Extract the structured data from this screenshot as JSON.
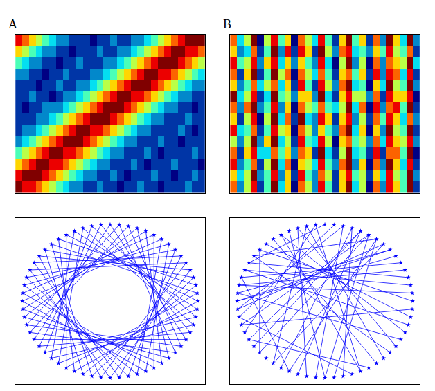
{
  "chart_data": [
    {
      "panel": "A",
      "type": "heatmap",
      "color": "Jet",
      "tick_labels": false,
      "z": [
        [
          9,
          8,
          8,
          7,
          6,
          5,
          4,
          3,
          2,
          2,
          1,
          1,
          2,
          1,
          1,
          0,
          1,
          1,
          2,
          1,
          1,
          0,
          1,
          1,
          1,
          2,
          1,
          1
        ],
        [
          8,
          9,
          9,
          9,
          8,
          7,
          6,
          5,
          4,
          3,
          2,
          2,
          1,
          1,
          2,
          1,
          0,
          1,
          1,
          1,
          2,
          1,
          1,
          0,
          1,
          1,
          2,
          1
        ],
        [
          6,
          7,
          8,
          9,
          9,
          8,
          8,
          7,
          6,
          5,
          4,
          3,
          2,
          2,
          1,
          1,
          1,
          2,
          1,
          0,
          1,
          1,
          1,
          2,
          1,
          1,
          1,
          0
        ],
        [
          4,
          5,
          6,
          7,
          8,
          9,
          9,
          8,
          8,
          7,
          6,
          5,
          4,
          3,
          2,
          2,
          1,
          1,
          1,
          2,
          1,
          0,
          1,
          1,
          1,
          1,
          2,
          1
        ],
        [
          2,
          3,
          4,
          5,
          6,
          7,
          8,
          9,
          9,
          9,
          8,
          7,
          6,
          5,
          4,
          3,
          2,
          2,
          1,
          1,
          1,
          2,
          1,
          1,
          0,
          1,
          1,
          1
        ],
        [
          1,
          2,
          2,
          3,
          4,
          5,
          6,
          7,
          8,
          9,
          9,
          8,
          8,
          7,
          6,
          5,
          4,
          3,
          2,
          2,
          1,
          1,
          1,
          1,
          2,
          1,
          0,
          1
        ],
        [
          1,
          1,
          1,
          2,
          2,
          3,
          4,
          5,
          6,
          7,
          8,
          9,
          9,
          9,
          8,
          7,
          6,
          5,
          4,
          3,
          2,
          2,
          1,
          1,
          1,
          2,
          1,
          1
        ],
        [
          1,
          0,
          1,
          1,
          2,
          2,
          2,
          3,
          4,
          5,
          6,
          7,
          8,
          9,
          9,
          9,
          8,
          7,
          6,
          5,
          4,
          3,
          2,
          2,
          1,
          1,
          0,
          1
        ],
        [
          1,
          1,
          2,
          1,
          1,
          0,
          1,
          2,
          2,
          3,
          4,
          5,
          6,
          7,
          8,
          9,
          9,
          8,
          8,
          7,
          6,
          5,
          4,
          3,
          2,
          2,
          1,
          1
        ],
        [
          1,
          1,
          1,
          0,
          1,
          1,
          2,
          1,
          1,
          2,
          2,
          3,
          4,
          5,
          6,
          7,
          8,
          9,
          9,
          9,
          8,
          7,
          6,
          5,
          4,
          3,
          2,
          2
        ],
        [
          2,
          2,
          1,
          1,
          0,
          1,
          1,
          2,
          1,
          1,
          1,
          2,
          2,
          3,
          4,
          5,
          6,
          7,
          8,
          9,
          9,
          8,
          8,
          7,
          6,
          5,
          4,
          3
        ],
        [
          4,
          3,
          2,
          2,
          1,
          1,
          0,
          1,
          1,
          2,
          1,
          1,
          1,
          2,
          2,
          3,
          4,
          5,
          6,
          7,
          8,
          9,
          9,
          9,
          8,
          7,
          6,
          5
        ],
        [
          6,
          5,
          4,
          3,
          2,
          2,
          1,
          1,
          0,
          1,
          1,
          1,
          2,
          1,
          1,
          2,
          2,
          3,
          4,
          5,
          6,
          7,
          8,
          9,
          9,
          8,
          8,
          7
        ],
        [
          8,
          7,
          6,
          5,
          4,
          3,
          2,
          2,
          1,
          1,
          1,
          0,
          1,
          1,
          2,
          1,
          1,
          2,
          2,
          3,
          4,
          5,
          6,
          7,
          8,
          9,
          9,
          9
        ]
      ]
    },
    {
      "panel": "B",
      "type": "heatmap",
      "color": "Jet",
      "tick_labels": false,
      "z": [
        [
          7,
          2,
          5,
          8,
          1,
          4,
          9,
          3,
          6,
          0,
          7,
          5,
          2,
          8,
          4,
          1,
          6,
          9,
          3,
          5,
          0,
          7,
          2,
          8,
          6,
          4,
          9,
          1
        ],
        [
          6,
          3,
          5,
          9,
          2,
          4,
          8,
          2,
          6,
          1,
          8,
          4,
          2,
          7,
          5,
          1,
          6,
          8,
          4,
          5,
          1,
          6,
          3,
          8,
          5,
          4,
          9,
          2
        ],
        [
          8,
          2,
          4,
          7,
          1,
          5,
          9,
          3,
          7,
          0,
          6,
          5,
          3,
          8,
          4,
          2,
          7,
          9,
          2,
          6,
          0,
          7,
          2,
          9,
          6,
          3,
          8,
          1
        ],
        [
          7,
          1,
          6,
          8,
          3,
          3,
          7,
          4,
          6,
          2,
          7,
          6,
          1,
          9,
          3,
          1,
          5,
          9,
          3,
          4,
          1,
          8,
          1,
          7,
          7,
          4,
          9,
          0
        ],
        [
          5,
          2,
          5,
          9,
          2,
          6,
          9,
          3,
          5,
          1,
          8,
          4,
          3,
          8,
          5,
          0,
          6,
          7,
          4,
          5,
          2,
          7,
          3,
          8,
          6,
          5,
          8,
          2
        ],
        [
          8,
          3,
          4,
          7,
          1,
          4,
          8,
          5,
          6,
          0,
          7,
          5,
          2,
          6,
          4,
          2,
          7,
          9,
          3,
          6,
          0,
          6,
          2,
          9,
          5,
          4,
          9,
          1
        ],
        [
          6,
          1,
          5,
          8,
          0,
          5,
          9,
          3,
          7,
          1,
          9,
          3,
          2,
          8,
          6,
          1,
          6,
          8,
          2,
          5,
          1,
          7,
          4,
          8,
          6,
          3,
          7,
          2
        ],
        [
          7,
          2,
          7,
          9,
          2,
          4,
          8,
          2,
          6,
          0,
          7,
          5,
          4,
          7,
          4,
          3,
          5,
          9,
          3,
          7,
          0,
          8,
          2,
          7,
          8,
          4,
          9,
          1
        ],
        [
          9,
          3,
          5,
          8,
          1,
          3,
          9,
          4,
          5,
          2,
          6,
          6,
          2,
          9,
          3,
          1,
          6,
          8,
          5,
          5,
          2,
          7,
          1,
          8,
          6,
          6,
          8,
          0
        ],
        [
          6,
          2,
          4,
          7,
          3,
          5,
          7,
          3,
          6,
          1,
          8,
          4,
          1,
          8,
          5,
          2,
          7,
          9,
          3,
          4,
          0,
          6,
          3,
          9,
          5,
          4,
          9,
          2
        ],
        [
          7,
          1,
          6,
          9,
          1,
          4,
          9,
          5,
          7,
          0,
          7,
          5,
          3,
          7,
          4,
          1,
          6,
          7,
          4,
          6,
          1,
          8,
          2,
          8,
          7,
          3,
          8,
          1
        ],
        [
          8,
          4,
          5,
          8,
          2,
          6,
          8,
          3,
          6,
          2,
          6,
          4,
          2,
          8,
          3,
          0,
          5,
          9,
          2,
          5,
          0,
          7,
          2,
          7,
          6,
          5,
          9,
          3
        ],
        [
          6,
          2,
          3,
          7,
          1,
          4,
          9,
          2,
          8,
          1,
          8,
          6,
          1,
          9,
          5,
          2,
          7,
          8,
          3,
          4,
          2,
          6,
          4,
          8,
          5,
          4,
          7,
          1
        ],
        [
          7,
          3,
          5,
          9,
          0,
          5,
          8,
          4,
          6,
          0,
          7,
          5,
          3,
          8,
          4,
          1,
          6,
          9,
          4,
          6,
          1,
          7,
          2,
          9,
          6,
          3,
          9,
          2
        ]
      ]
    },
    {
      "panel": "A",
      "type": "network",
      "color": "#0000ff",
      "marker": "star",
      "tick_labels": false,
      "nodes": 60,
      "edges": [
        [
          0,
          20
        ],
        [
          1,
          22
        ],
        [
          2,
          21
        ],
        [
          3,
          23
        ],
        [
          4,
          24
        ],
        [
          5,
          25
        ],
        [
          6,
          27
        ],
        [
          7,
          26
        ],
        [
          8,
          28
        ],
        [
          9,
          29
        ],
        [
          10,
          31
        ],
        [
          11,
          30
        ],
        [
          12,
          32
        ],
        [
          13,
          33
        ],
        [
          14,
          35
        ],
        [
          15,
          34
        ],
        [
          16,
          36
        ],
        [
          17,
          38
        ],
        [
          18,
          37
        ],
        [
          19,
          39
        ],
        [
          20,
          40
        ],
        [
          21,
          42
        ],
        [
          22,
          41
        ],
        [
          23,
          43
        ],
        [
          24,
          44
        ],
        [
          25,
          46
        ],
        [
          26,
          45
        ],
        [
          27,
          47
        ],
        [
          28,
          48
        ],
        [
          29,
          50
        ],
        [
          30,
          49
        ],
        [
          31,
          51
        ],
        [
          32,
          53
        ],
        [
          33,
          52
        ],
        [
          34,
          54
        ],
        [
          35,
          55
        ],
        [
          36,
          57
        ],
        [
          37,
          56
        ],
        [
          38,
          58
        ],
        [
          39,
          59
        ],
        [
          40,
          0
        ],
        [
          41,
          2
        ],
        [
          42,
          1
        ],
        [
          43,
          3
        ],
        [
          44,
          4
        ],
        [
          45,
          6
        ],
        [
          46,
          5
        ],
        [
          47,
          7
        ],
        [
          48,
          8
        ],
        [
          49,
          10
        ],
        [
          50,
          9
        ],
        [
          51,
          11
        ],
        [
          52,
          12
        ],
        [
          53,
          14
        ],
        [
          54,
          13
        ],
        [
          55,
          15
        ],
        [
          56,
          16
        ],
        [
          57,
          18
        ],
        [
          58,
          17
        ],
        [
          59,
          19
        ]
      ]
    },
    {
      "panel": "B",
      "type": "network",
      "color": "#0000ff",
      "marker": "star",
      "tick_labels": false,
      "nodes": 60,
      "edges": [
        [
          2,
          31
        ],
        [
          3,
          35
        ],
        [
          4,
          33
        ],
        [
          5,
          38
        ],
        [
          5,
          30
        ],
        [
          6,
          34
        ],
        [
          6,
          29
        ],
        [
          7,
          36
        ],
        [
          8,
          45
        ],
        [
          3,
          28
        ],
        [
          4,
          40
        ],
        [
          2,
          44
        ],
        [
          10,
          48
        ],
        [
          12,
          50
        ],
        [
          14,
          47
        ],
        [
          15,
          52
        ],
        [
          16,
          42
        ],
        [
          18,
          49
        ],
        [
          20,
          46
        ],
        [
          22,
          51
        ],
        [
          24,
          54
        ],
        [
          25,
          40
        ],
        [
          26,
          55
        ],
        [
          27,
          43
        ],
        [
          30,
          56
        ],
        [
          32,
          57
        ],
        [
          34,
          48
        ],
        [
          36,
          58
        ],
        [
          38,
          52
        ],
        [
          41,
          59
        ],
        [
          43,
          1
        ],
        [
          45,
          9
        ],
        [
          47,
          11
        ],
        [
          49,
          13
        ],
        [
          50,
          0
        ],
        [
          53,
          17
        ],
        [
          55,
          19
        ],
        [
          57,
          21
        ],
        [
          58,
          23
        ],
        [
          59,
          26
        ],
        [
          44,
          7
        ],
        [
          46,
          8
        ],
        [
          51,
          6
        ],
        [
          42,
          5
        ],
        [
          39,
          4
        ]
      ]
    }
  ]
}
